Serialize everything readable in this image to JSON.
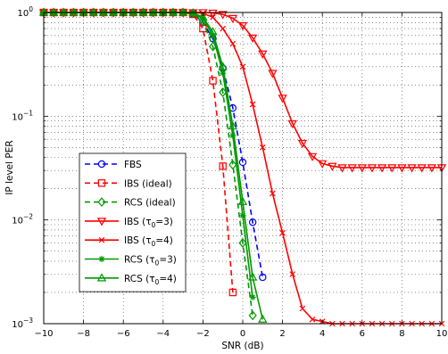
{
  "chart_data": {
    "type": "line",
    "title": "",
    "xlabel": "SNR (dB)",
    "ylabel": "IP level PER",
    "xlim": [
      -10,
      10
    ],
    "ylim": [
      0.001,
      1
    ],
    "yscale": "log",
    "grid": true,
    "legend_position": "lower-left",
    "xticks": [
      -10,
      -8,
      -6,
      -4,
      -2,
      0,
      2,
      4,
      6,
      8,
      10
    ],
    "xtick_labels": [
      "−10",
      "−8",
      "−6",
      "−4",
      "−2",
      "0",
      "2",
      "4",
      "6",
      "8",
      "10"
    ],
    "yticks": [
      1,
      0.1,
      0.01,
      0.001
    ],
    "ytick_bases": [
      "10",
      "10",
      "10",
      "10"
    ],
    "ytick_exps": [
      "0",
      "−1",
      "−2",
      "−3"
    ],
    "series": [
      {
        "name": "FBS",
        "legend_name": "FBS",
        "color": "#0000ff",
        "dash": "6,4",
        "marker": "circle",
        "x": [
          -10,
          -9.5,
          -9,
          -8.5,
          -8,
          -7.5,
          -7,
          -6.5,
          -6,
          -5.5,
          -5,
          -4.5,
          -4,
          -3.5,
          -3,
          -2.5,
          -2,
          -1.5,
          -1,
          -0.5,
          0,
          0.5,
          1
        ],
        "y": [
          1,
          1,
          1,
          1,
          1,
          1,
          1,
          1,
          1,
          1,
          1,
          1,
          1,
          1,
          1,
          0.97,
          0.8,
          0.56,
          0.29,
          0.12,
          0.036,
          0.0095,
          0.0028
        ]
      },
      {
        "name": "IBS (ideal)",
        "legend_name": "IBS (ideal)",
        "color": "#ff0000",
        "dash": "6,4",
        "marker": "square",
        "x": [
          -10,
          -9.5,
          -9,
          -8.5,
          -8,
          -7.5,
          -7,
          -6.5,
          -6,
          -5.5,
          -5,
          -4.5,
          -4,
          -3.5,
          -3,
          -2.5,
          -2,
          -1.5,
          -1,
          -0.5
        ],
        "y": [
          1,
          1,
          1,
          1,
          1,
          1,
          1,
          1,
          1,
          1,
          1,
          1,
          1,
          1,
          1,
          0.96,
          0.7,
          0.22,
          0.033,
          0.002
        ]
      },
      {
        "name": "RCS (ideal)",
        "legend_name": "RCS (ideal)",
        "color": "#009900",
        "dash": "6,4",
        "marker": "diamond",
        "x": [
          -10,
          -9.5,
          -9,
          -8.5,
          -8,
          -7.5,
          -7,
          -6.5,
          -6,
          -5.5,
          -5,
          -4.5,
          -4,
          -3.5,
          -3,
          -2.5,
          -2,
          -1.5,
          -1,
          -0.5,
          0,
          0.5
        ],
        "y": [
          1,
          1,
          1,
          1,
          1,
          1,
          1,
          1,
          1,
          1,
          1,
          1,
          1,
          1,
          1,
          0.98,
          0.82,
          0.47,
          0.17,
          0.034,
          0.006,
          0.0012
        ]
      },
      {
        "name": "IBS (τ0=3)",
        "legend_main": "IBS (τ",
        "legend_sub": "0",
        "legend_tail": "=3)",
        "color": "#ff0000",
        "dash": "",
        "marker": "triangle-down",
        "x": [
          -10,
          -9.5,
          -9,
          -8.5,
          -8,
          -7.5,
          -7,
          -6.5,
          -6,
          -5.5,
          -5,
          -4.5,
          -4,
          -3.5,
          -3,
          -2.5,
          -2,
          -1.5,
          -1,
          -0.5,
          0,
          0.5,
          1,
          1.5,
          2,
          2.5,
          3,
          3.5,
          4,
          4.5,
          5,
          5.5,
          6,
          6.5,
          7,
          7.5,
          8,
          8.5,
          9,
          9.5,
          10
        ],
        "y": [
          1,
          1,
          1,
          1,
          1,
          1,
          1,
          1,
          1,
          1,
          1,
          1,
          1,
          1,
          1,
          1,
          1,
          0.99,
          0.96,
          0.88,
          0.75,
          0.57,
          0.4,
          0.26,
          0.15,
          0.085,
          0.055,
          0.041,
          0.035,
          0.033,
          0.032,
          0.032,
          0.032,
          0.032,
          0.032,
          0.032,
          0.032,
          0.032,
          0.032,
          0.032,
          0.032
        ]
      },
      {
        "name": "IBS (τ0=4)",
        "legend_main": "IBS (τ",
        "legend_sub": "0",
        "legend_tail": "=4)",
        "color": "#ff0000",
        "dash": "",
        "marker": "x",
        "x": [
          -10,
          -9.5,
          -9,
          -8.5,
          -8,
          -7.5,
          -7,
          -6.5,
          -6,
          -5.5,
          -5,
          -4.5,
          -4,
          -3.5,
          -3,
          -2.5,
          -2,
          -1.5,
          -1,
          -0.5,
          0,
          0.5,
          1,
          1.5,
          2,
          2.5,
          3,
          3.5,
          4,
          4.5,
          5,
          5.5,
          6,
          6.5,
          7,
          7.5,
          8,
          8.5,
          9,
          9.5,
          10
        ],
        "y": [
          1,
          1,
          1,
          1,
          1,
          1,
          1,
          1,
          1,
          1,
          1,
          1,
          1,
          1,
          1,
          1,
          0.98,
          0.9,
          0.7,
          0.5,
          0.3,
          0.13,
          0.05,
          0.018,
          0.0075,
          0.003,
          0.0014,
          0.0011,
          0.00105,
          0.001,
          0.001,
          0.001,
          0.001,
          0.001,
          0.001,
          0.001,
          0.001,
          0.001,
          0.001,
          0.001,
          0.001
        ]
      },
      {
        "name": "RCS (τ0=3)",
        "legend_main": "RCS (τ",
        "legend_sub": "0",
        "legend_tail": "=3)",
        "color": "#009900",
        "dash": "",
        "marker": "asterisk",
        "x": [
          -10,
          -9.5,
          -9,
          -8.5,
          -8,
          -7.5,
          -7,
          -6.5,
          -6,
          -5.5,
          -5,
          -4.5,
          -4,
          -3.5,
          -3,
          -2.5,
          -2,
          -1.5,
          -1,
          -0.5,
          0,
          0.5
        ],
        "y": [
          1,
          1,
          1,
          1,
          1,
          1,
          1,
          1,
          1,
          1,
          1,
          1,
          1,
          1,
          1,
          0.98,
          0.88,
          0.6,
          0.26,
          0.065,
          0.011,
          0.0018
        ]
      },
      {
        "name": "RCS (τ0=4)",
        "legend_main": "RCS (τ",
        "legend_sub": "0",
        "legend_tail": "=4)",
        "color": "#009900",
        "dash": "",
        "marker": "triangle-up",
        "x": [
          -10,
          -9.5,
          -9,
          -8.5,
          -8,
          -7.5,
          -7,
          -6.5,
          -6,
          -5.5,
          -5,
          -4.5,
          -4,
          -3.5,
          -3,
          -2.5,
          -2,
          -1.5,
          -1,
          -0.5,
          0,
          0.5,
          1
        ],
        "y": [
          1,
          1,
          1,
          1,
          1,
          1,
          1,
          1,
          1,
          1,
          1,
          1,
          1,
          1,
          1,
          0.99,
          0.9,
          0.65,
          0.3,
          0.08,
          0.015,
          0.0028,
          0.0011
        ]
      }
    ]
  }
}
